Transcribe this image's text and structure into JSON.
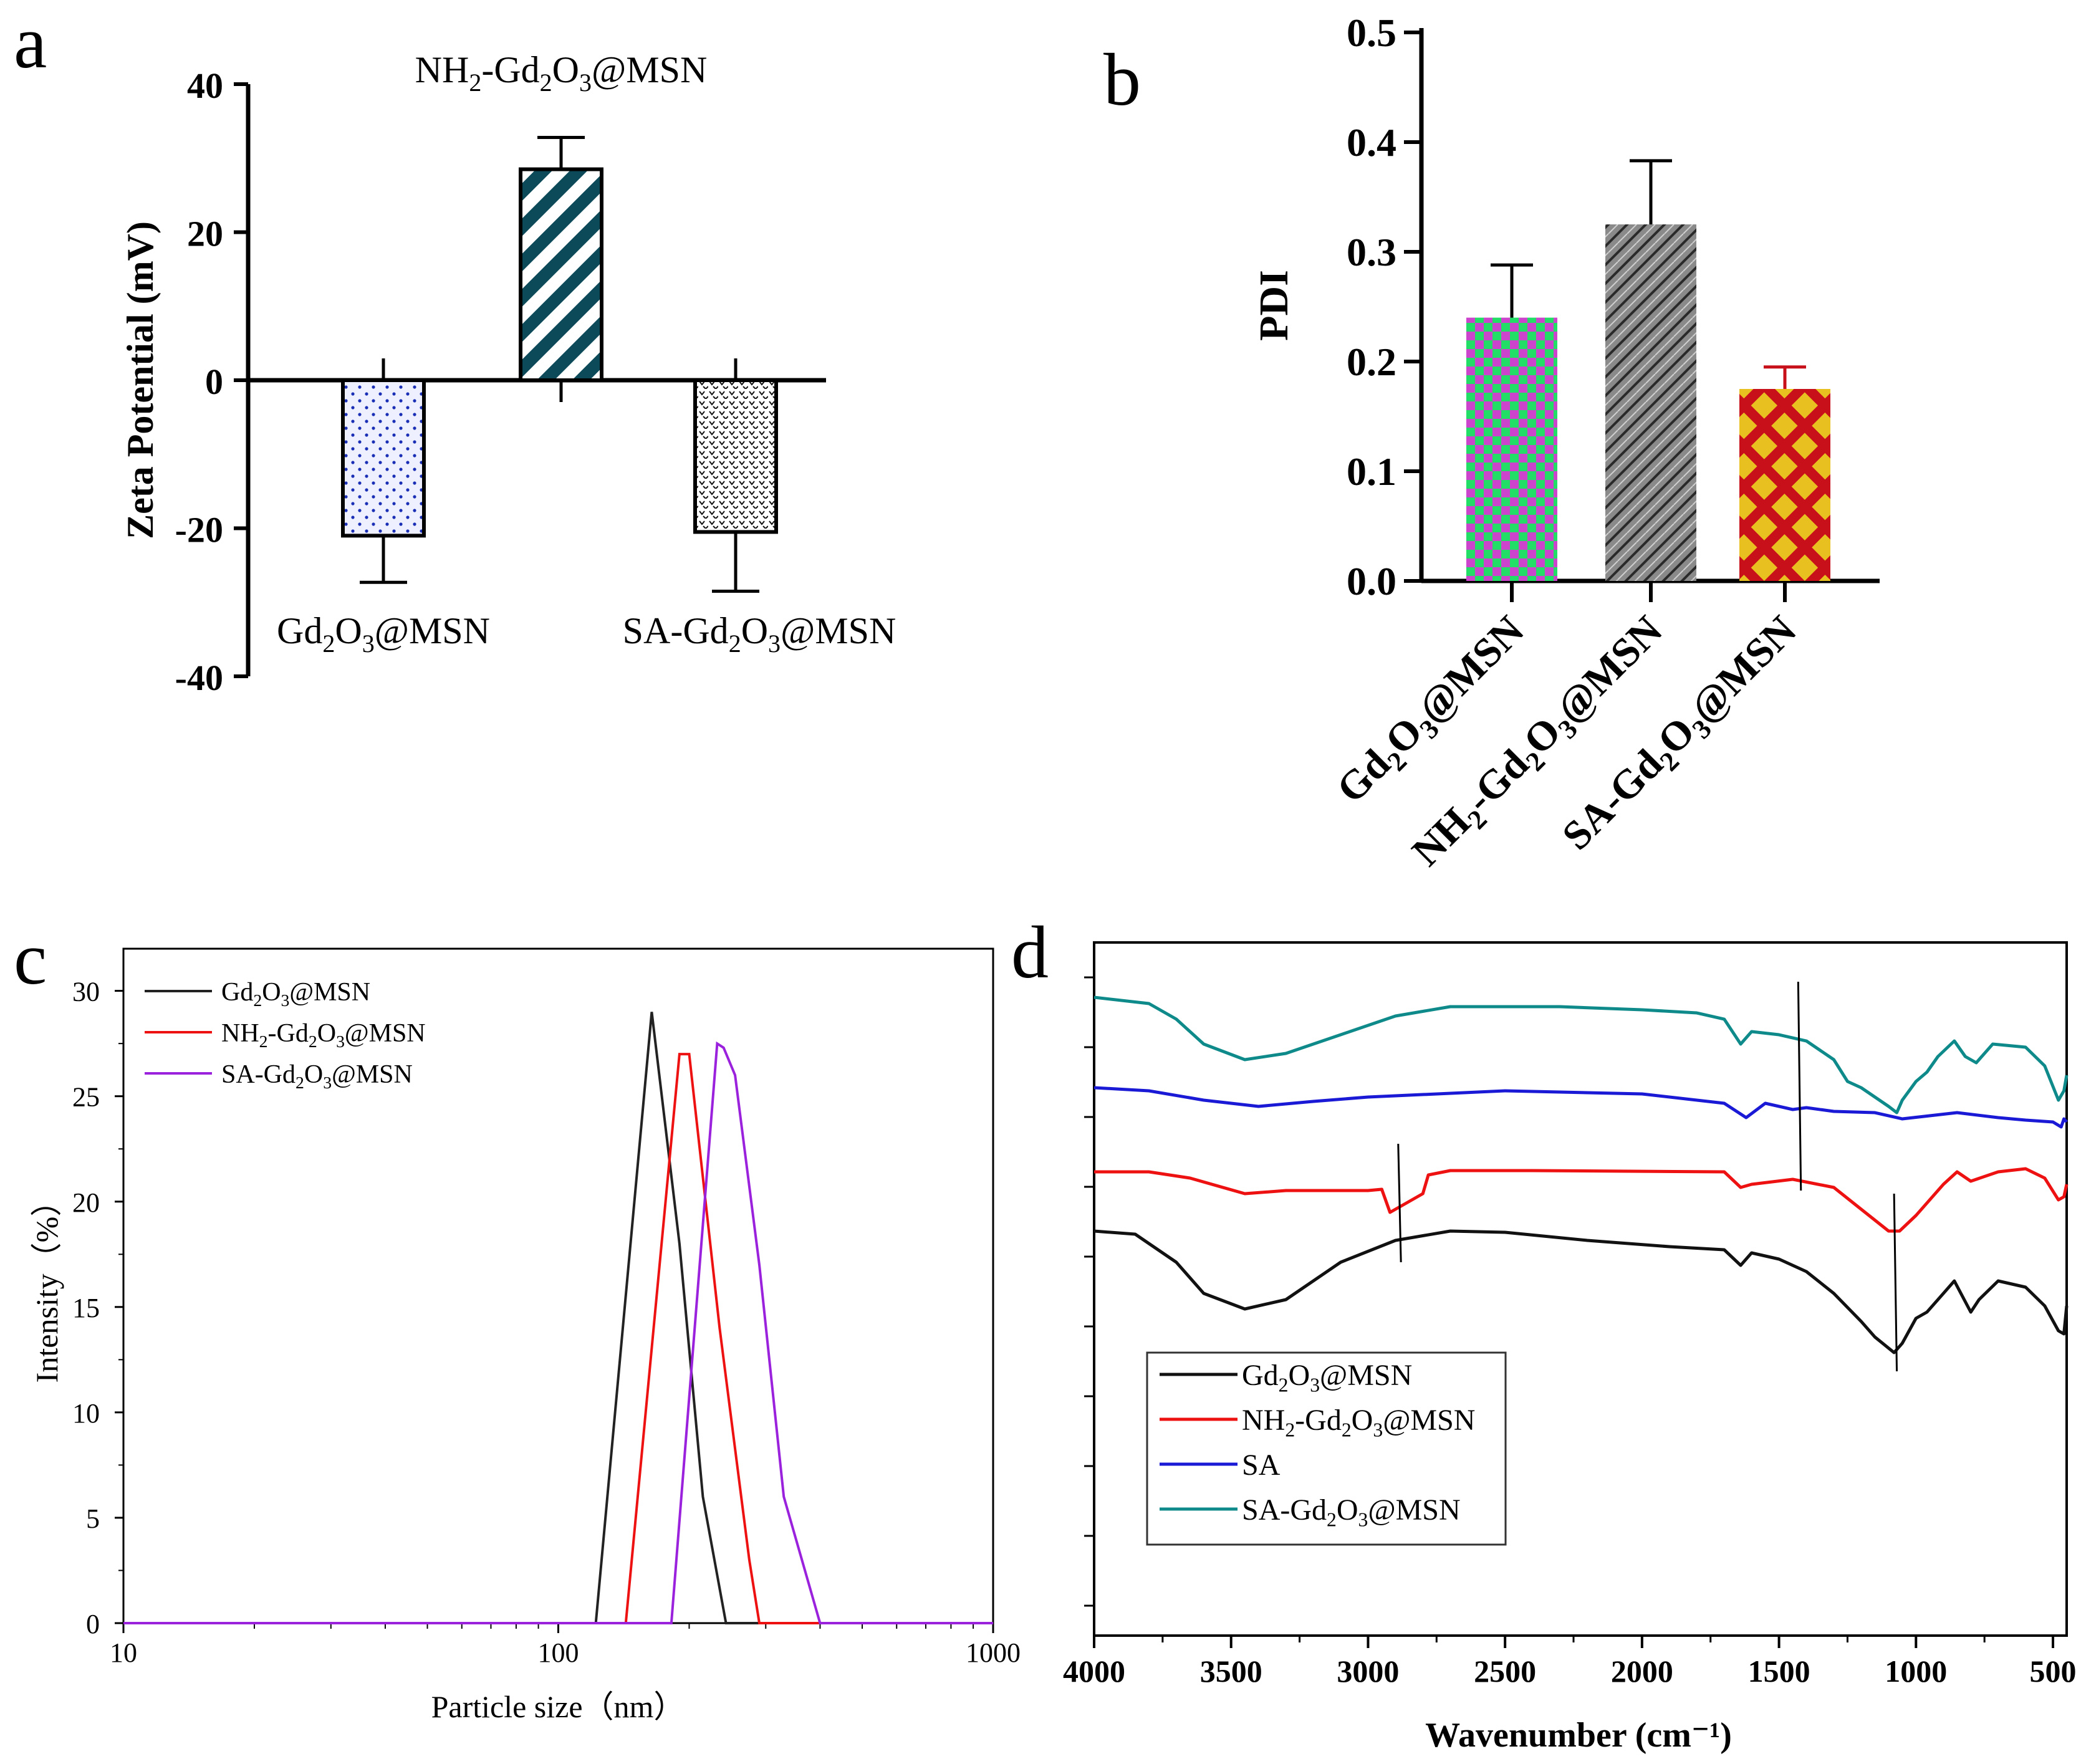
{
  "panel_labels": {
    "a": "a",
    "b": "b",
    "c": "c",
    "d": "d"
  },
  "chart_data": [
    {
      "panel": "a",
      "type": "bar",
      "ylabel": "Zeta Potential (mV)",
      "ylim": [
        -40,
        40
      ],
      "yticks": [
        "40",
        "20",
        "0",
        "-20",
        "-40"
      ],
      "categories": [
        "Gd2O3@MSN",
        "NH2-Gd2O3@MSN",
        "SA-Gd2O3@MSN"
      ],
      "category_labels": [
        {
          "base": "Gd",
          "sub": "2",
          "mid": "O",
          "sub2": "3",
          "rest": "@MSN"
        },
        {
          "base": "NH",
          "sub": "2",
          "mid": "-Gd",
          "sub2": "2",
          "mid2": "O",
          "sub3": "3",
          "rest": "@MSN"
        },
        {
          "pre": "SA-",
          "base": "Gd",
          "sub": "2",
          "mid": "O",
          "sub2": "3",
          "rest": "@MSN"
        }
      ],
      "values": [
        -21,
        28.5,
        -20.5
      ],
      "errors": [
        6.3,
        4.3,
        8
      ],
      "colors": [
        "#1a2fb5",
        "#0c4a5a",
        "#222222"
      ],
      "patterns": [
        "dots",
        "stripes",
        "checks"
      ]
    },
    {
      "panel": "b",
      "type": "bar",
      "ylabel": "PDI",
      "ylim": [
        0,
        0.5
      ],
      "yticks": [
        "0.0",
        "0.1",
        "0.2",
        "0.3",
        "0.4",
        "0.5"
      ],
      "categories": [
        "Gd2O3@MSN",
        "NH2-Gd2O3@MSN",
        "SA-Gd2O3@MSN"
      ],
      "values": [
        0.24,
        0.325,
        0.175
      ],
      "errors": [
        0.048,
        0.058,
        0.02
      ],
      "colors": [
        "#22dd66",
        "#888888",
        "#c8101a"
      ],
      "error_colors": [
        "#000000",
        "#000000",
        "#c8101a"
      ]
    },
    {
      "panel": "c",
      "type": "line",
      "xscale": "log",
      "xlim": [
        10,
        1000
      ],
      "ylim": [
        0,
        32
      ],
      "xlabel": "Particle size（nm）",
      "ylabel": "Intensity（%）",
      "xticks": [
        "10",
        "100",
        "1000"
      ],
      "yticks": [
        "0",
        "5",
        "10",
        "15",
        "20",
        "25",
        "30"
      ],
      "series": [
        {
          "name": "Gd2O3@MSN",
          "legend": {
            "a": "Gd",
            "s1": "2",
            "b": "O",
            "s2": "3",
            "c": "@MSN"
          },
          "color": "#222222",
          "points": [
            [
              10,
              0
            ],
            [
              122,
              0
            ],
            [
              164,
              29
            ],
            [
              190,
              18
            ],
            [
              215,
              6
            ],
            [
              243,
              0
            ],
            [
              1000,
              0
            ]
          ]
        },
        {
          "name": "NH2-Gd2O3@MSN",
          "legend": {
            "a": "NH",
            "s1": "2",
            "b": "-Gd",
            "s2": "2",
            "c": "O",
            "s3": "3",
            "d": "@MSN"
          },
          "color": "#ee1111",
          "points": [
            [
              10,
              0
            ],
            [
              143,
              0
            ],
            [
              190,
              27
            ],
            [
              200,
              27
            ],
            [
              235,
              14
            ],
            [
              275,
              3
            ],
            [
              290,
              0
            ],
            [
              1000,
              0
            ]
          ]
        },
        {
          "name": "SA-Gd2O3@MSN",
          "legend": {
            "a": "SA-Gd",
            "s1": "2",
            "b": "O",
            "s2": "3",
            "c": "@MSN"
          },
          "color": "#9b22dd",
          "points": [
            [
              10,
              0
            ],
            [
              182,
              0
            ],
            [
              232,
              27.5
            ],
            [
              240,
              27.3
            ],
            [
              255,
              26
            ],
            [
              290,
              17
            ],
            [
              330,
              6
            ],
            [
              400,
              0
            ],
            [
              1000,
              0
            ]
          ]
        }
      ]
    },
    {
      "panel": "d",
      "type": "line",
      "xlabel": "Wavenumber (cm⁻¹)",
      "xlim": [
        4000,
        450
      ],
      "xticks": [
        "4000",
        "3500",
        "3000",
        "2500",
        "2000",
        "1500",
        "1000",
        "500"
      ],
      "series": [
        {
          "name": "Gd2O3@MSN",
          "legend": {
            "a": "Gd",
            "s1": "2",
            "b": "O",
            "s2": "3",
            "c": "@MSN"
          },
          "color": "#111111"
        },
        {
          "name": "NH2-Gd2O3@MSN",
          "legend": {
            "a": "NH",
            "s1": "2",
            "b": "-Gd",
            "s2": "2",
            "c": "O",
            "s3": "3",
            "d": "@MSN"
          },
          "color": "#ee1111"
        },
        {
          "name": "SA",
          "legend": {
            "a": "SA"
          },
          "color": "#1a1ad6"
        },
        {
          "name": "SA-Gd2O3@MSN",
          "legend": {
            "a": "SA-Gd",
            "s1": "2",
            "b": "O",
            "s2": "3",
            "c": "@MSN"
          },
          "color": "#0f8a8a"
        }
      ]
    }
  ]
}
